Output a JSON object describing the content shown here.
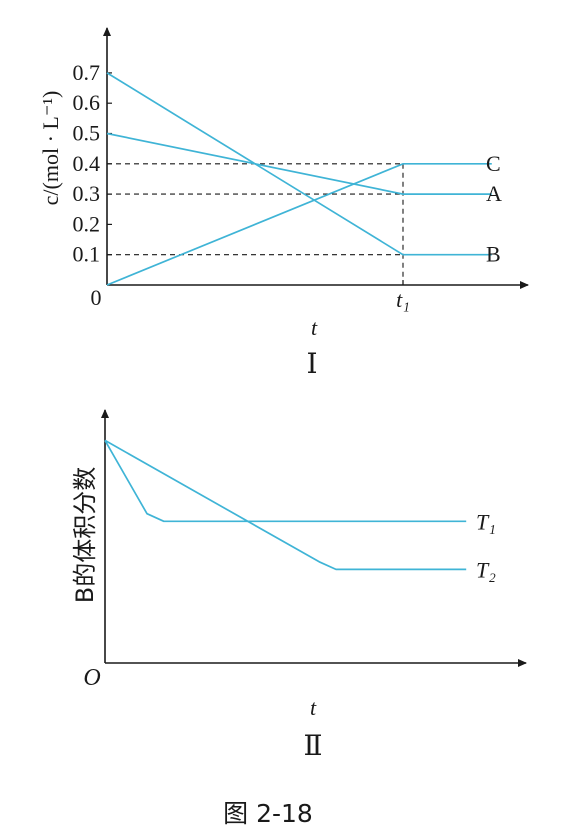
{
  "chart_data": [
    {
      "type": "line",
      "panel_label": "Ⅰ",
      "ylabel": "c/(mol · L⁻¹)",
      "xlabel": "t",
      "origin_label": "0",
      "x_tick_label": "t₁",
      "y_ticks": [
        "0.1",
        "0.2",
        "0.3",
        "0.4",
        "0.5",
        "0.6",
        "0.7"
      ],
      "ylim": [
        0,
        0.8
      ],
      "xlim": [
        0,
        1.43
      ],
      "series": [
        {
          "name": "C",
          "points": [
            [
              0,
              0
            ],
            [
              1,
              0.4
            ],
            [
              1.3,
              0.4
            ]
          ]
        },
        {
          "name": "A",
          "points": [
            [
              0,
              0.5
            ],
            [
              1,
              0.3
            ],
            [
              1.3,
              0.3
            ]
          ]
        },
        {
          "name": "B",
          "points": [
            [
              0,
              0.7
            ],
            [
              1,
              0.1
            ],
            [
              1.3,
              0.1
            ]
          ]
        }
      ],
      "reference_lines": [
        0.1,
        0.3,
        0.4
      ]
    },
    {
      "type": "line",
      "panel_label": "Ⅱ",
      "ylabel": "B的体积分数",
      "xlabel": "t",
      "origin_label": "O",
      "series": [
        {
          "name": "T₁",
          "points": [
            [
              0,
              0.88
            ],
            [
              0.1,
              0.59
            ],
            [
              0.14,
              0.56
            ],
            [
              0.86,
              0.56
            ]
          ]
        },
        {
          "name": "T₂",
          "points": [
            [
              0,
              0.88
            ],
            [
              0.51,
              0.4
            ],
            [
              0.55,
              0.37
            ],
            [
              0.86,
              0.37
            ]
          ]
        }
      ]
    }
  ],
  "figure_caption": "图 2-18",
  "colors": {
    "curve": "#3fb4d6",
    "axis": "#1a1a1a",
    "text": "#1a1a1a"
  }
}
